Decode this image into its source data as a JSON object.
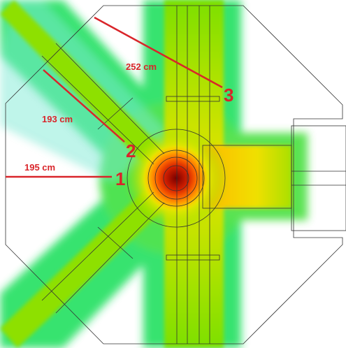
{
  "annotations": [
    {
      "distance": "195 cm",
      "marker": "1"
    },
    {
      "distance": "193 cm",
      "marker": "2"
    },
    {
      "distance": "252 cm",
      "marker": "3"
    }
  ]
}
